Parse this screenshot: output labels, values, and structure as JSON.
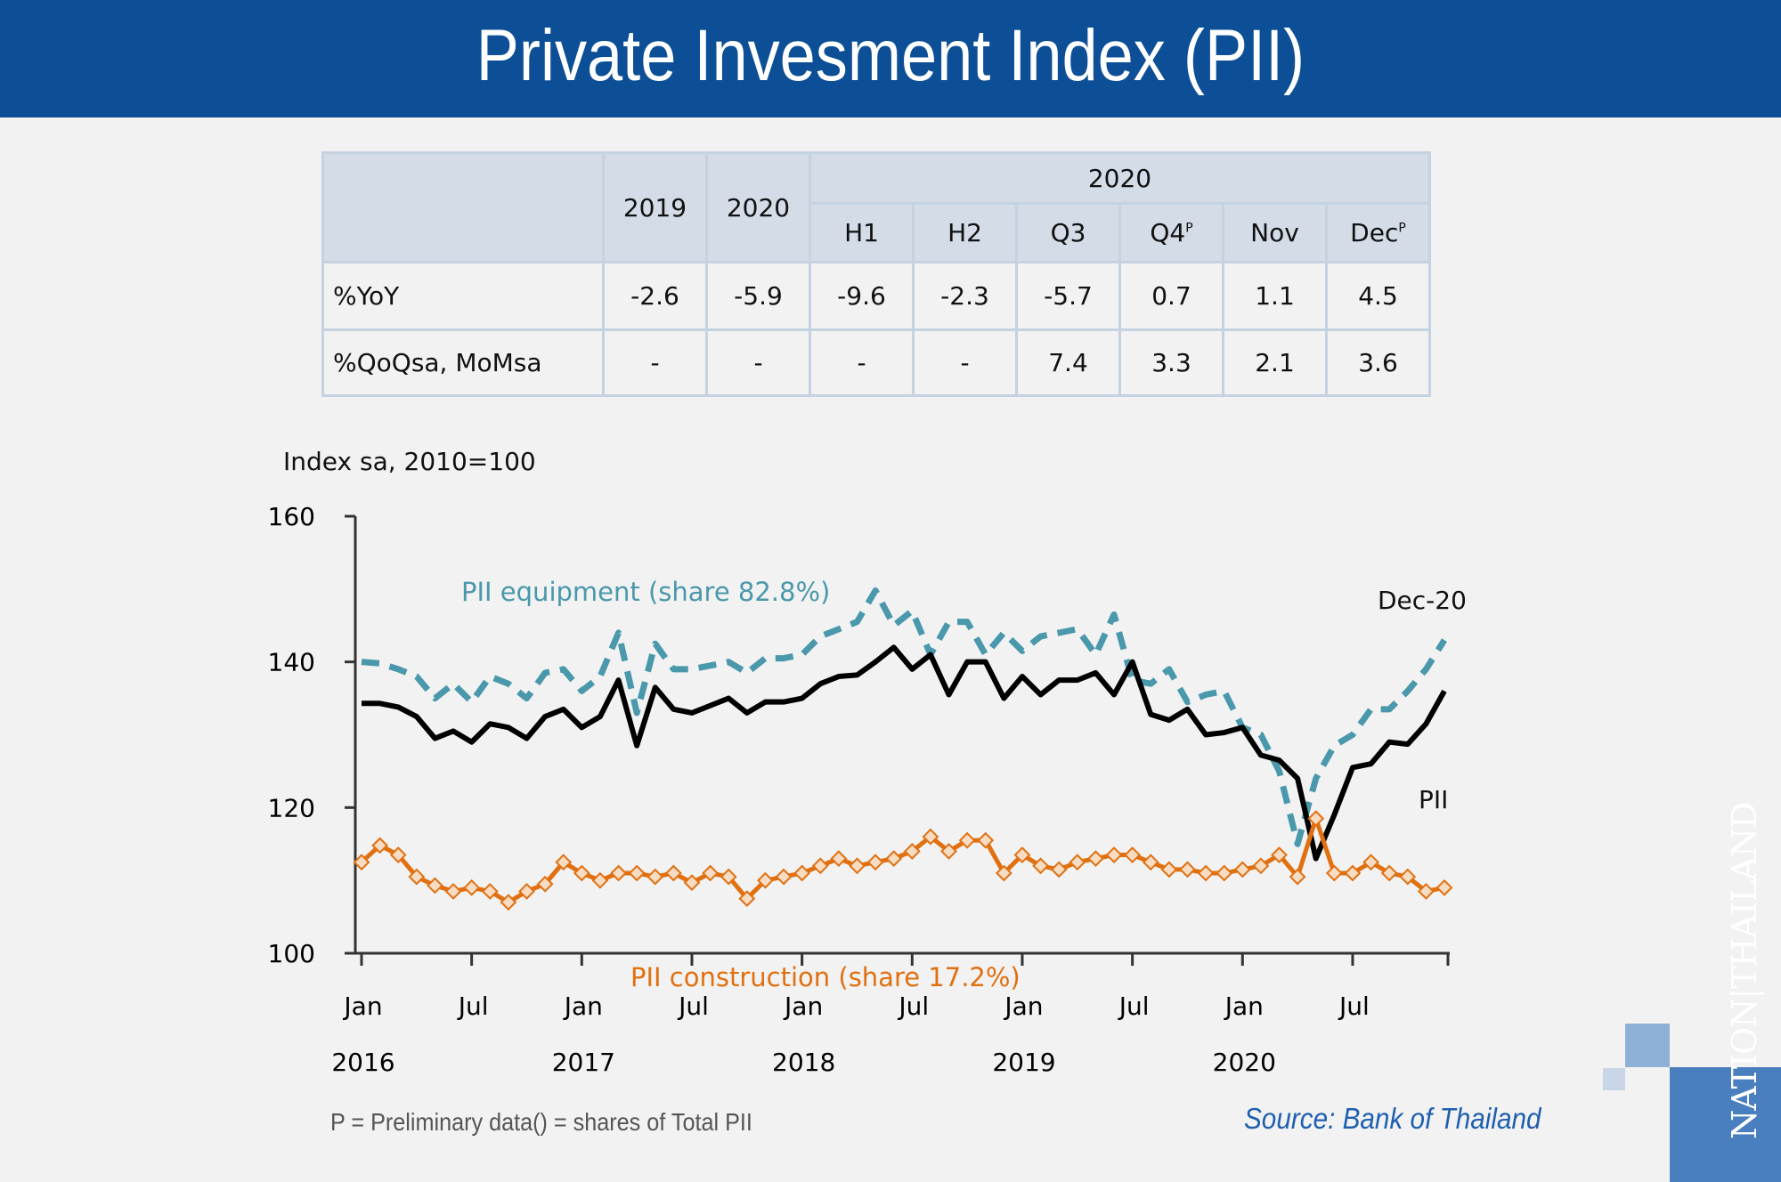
{
  "title": "Private Invesment Index (PII)",
  "table": {
    "header_top": [
      "",
      "2019",
      "2020",
      "2020"
    ],
    "sub_headers": [
      "H1",
      "H2",
      "Q3",
      "Q4",
      "Nov",
      "Dec"
    ],
    "sub_header_sup": [
      "",
      "",
      "",
      "P",
      "",
      "P"
    ],
    "rows": [
      {
        "label": "%YoY",
        "values": [
          "-2.6",
          "-5.9",
          "-9.6",
          "-2.3",
          "-5.7",
          "0.7",
          "1.1",
          "4.5"
        ]
      },
      {
        "label": "%QoQsa, MoMsa",
        "values": [
          "-",
          "-",
          "-",
          "-",
          "7.4",
          "3.3",
          "2.1",
          "3.6"
        ]
      }
    ]
  },
  "chart_data": {
    "type": "line",
    "ylabel": "Index sa, 2010=100",
    "ylim": [
      100,
      160
    ],
    "yticks": [
      "100",
      "120",
      "140",
      "160"
    ],
    "x_start": "2016-01",
    "x_end": "2020-12",
    "xtick_months": [
      "Jan",
      "Jul",
      "Jan",
      "Jul",
      "Jan",
      "Jul",
      "Jan",
      "Jul",
      "Jan",
      "Jul"
    ],
    "xtick_years": [
      "2016",
      "2017",
      "2018",
      "2019",
      "2020"
    ],
    "grid": false,
    "annotations": {
      "end_label": "Dec-20"
    },
    "series": [
      {
        "name": "PII equipment (share 82.8%)",
        "color": "#4a98ab",
        "style": "dashed",
        "values": [
          140,
          139.8,
          139,
          138,
          135,
          137,
          134.5,
          138,
          137,
          135,
          138.5,
          139,
          136,
          138,
          144,
          133,
          142.5,
          139,
          139,
          139.5,
          140,
          138.5,
          140.5,
          140.5,
          141,
          143.5,
          144.5,
          145.5,
          149.8,
          145,
          147,
          141,
          145.5,
          145.5,
          141,
          144,
          141.5,
          143.5,
          144,
          144.5,
          141,
          146.5,
          137.5,
          137,
          139,
          134.5,
          135.5,
          136,
          131,
          130,
          125,
          115,
          124,
          128.5,
          130,
          133.5,
          133.5,
          136,
          139,
          143
        ]
      },
      {
        "name": "PII",
        "color": "#000000",
        "style": "solid",
        "values": [
          134.3,
          134.3,
          133.8,
          132.5,
          129.5,
          130.5,
          129,
          131.5,
          131,
          129.5,
          132.5,
          133.5,
          131,
          132.5,
          137.5,
          128.5,
          136.5,
          133.5,
          133,
          134,
          135,
          133,
          134.5,
          134.5,
          135,
          137,
          138,
          138.2,
          140,
          142,
          139,
          141,
          135.5,
          140,
          140,
          135,
          138,
          135.5,
          137.5,
          137.5,
          138.5,
          135.5,
          140,
          132.8,
          132,
          133.5,
          130,
          130.3,
          131,
          127.2,
          126.5,
          124,
          113,
          119,
          125.5,
          126,
          129,
          128.7,
          131.5,
          136
        ]
      },
      {
        "name": "PII construction (share 17.2%)",
        "color": "#e07010",
        "style": "solid-diamond",
        "values": [
          112.5,
          114.8,
          113.5,
          110.5,
          109.3,
          108.5,
          109,
          108.5,
          107,
          108.5,
          109.5,
          112.5,
          111,
          110,
          111,
          111,
          110.5,
          111,
          109.7,
          111,
          110.5,
          107.5,
          110,
          110.5,
          111,
          112,
          113,
          112,
          112.5,
          113,
          114,
          116,
          114,
          115.5,
          115.5,
          111,
          113.5,
          112,
          111.5,
          112.5,
          113,
          113.5,
          113.5,
          112.5,
          111.5,
          111.5,
          111,
          111,
          111.5,
          112,
          113.5,
          110.5,
          118.5,
          111,
          111,
          112.5,
          111,
          110.5,
          108.5,
          109
        ]
      }
    ]
  },
  "footnote": "P = Preliminary data() = shares of Total PII",
  "source": "Source: Bank of Thailand",
  "logo": "NATIONTHAILAND",
  "colors": {
    "banner": "#0d4f96",
    "equipment": "#4a98ab",
    "construction": "#e07010",
    "source": "#1f5fb0"
  }
}
